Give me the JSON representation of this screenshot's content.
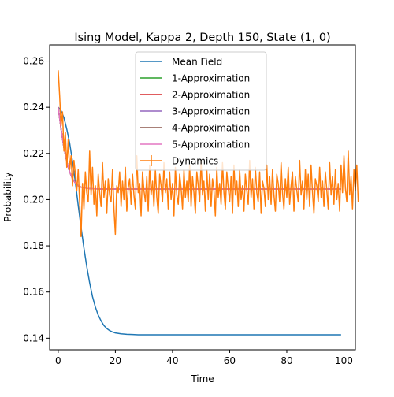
{
  "chart_data": {
    "type": "line",
    "title": "Ising Model, Kappa 2, Depth 150, State (1, 0)",
    "xlabel": "Time",
    "ylabel": "Probability",
    "xlim": [
      -3,
      104
    ],
    "ylim": [
      0.135,
      0.267
    ],
    "xticks": [
      0,
      20,
      40,
      60,
      80,
      100
    ],
    "yticks": [
      0.14,
      0.16,
      0.18,
      0.2,
      0.22,
      0.24,
      0.26
    ],
    "xtick_labels": [
      "0",
      "20",
      "40",
      "60",
      "80",
      "100"
    ],
    "ytick_labels": [
      "0.14",
      "0.16",
      "0.18",
      "0.20",
      "0.22",
      "0.24",
      "0.26"
    ],
    "grid": false,
    "legend_position": "top-center",
    "series": [
      {
        "name": "Mean Field",
        "color": "#1f77b4",
        "x": [
          0,
          1,
          2,
          3,
          4,
          5,
          6,
          7,
          8,
          9,
          10,
          11,
          12,
          13,
          14,
          15,
          16,
          17,
          18,
          19,
          20,
          22,
          24,
          26,
          28,
          30,
          35,
          40,
          50,
          60,
          70,
          80,
          90,
          99
        ],
        "y": [
          0.24,
          0.2385,
          0.2355,
          0.2305,
          0.2245,
          0.2165,
          0.2075,
          0.1975,
          0.188,
          0.179,
          0.171,
          0.164,
          0.158,
          0.1535,
          0.15,
          0.1475,
          0.1455,
          0.1442,
          0.1433,
          0.1427,
          0.1423,
          0.1419,
          0.1417,
          0.1416,
          0.1415,
          0.1415,
          0.1415,
          0.1415,
          0.1415,
          0.1415,
          0.1415,
          0.1415,
          0.1415,
          0.1415
        ]
      },
      {
        "name": "1-Approximation",
        "color": "#2ca02c",
        "x": [
          0,
          1,
          2,
          3,
          4,
          5,
          6,
          7,
          8,
          10,
          12,
          15,
          20,
          30,
          50,
          99
        ],
        "y": [
          0.24,
          0.2305,
          0.2225,
          0.2165,
          0.212,
          0.209,
          0.2072,
          0.206,
          0.2054,
          0.2049,
          0.2047,
          0.2046,
          0.2046,
          0.2046,
          0.2046,
          0.2046
        ]
      },
      {
        "name": "2-Approximation",
        "color": "#d62728",
        "x": [
          0,
          1,
          2,
          3,
          4,
          5,
          6,
          7,
          8,
          10,
          12,
          15,
          20,
          30,
          50,
          99
        ],
        "y": [
          0.24,
          0.2305,
          0.2225,
          0.2165,
          0.212,
          0.209,
          0.2072,
          0.206,
          0.2054,
          0.2049,
          0.2047,
          0.2046,
          0.2046,
          0.2046,
          0.2046,
          0.2046
        ]
      },
      {
        "name": "3-Approximation",
        "color": "#9467bd",
        "x": [
          0,
          1,
          2,
          3,
          4,
          5,
          6,
          7,
          8,
          10,
          12,
          15,
          20,
          30,
          50,
          99
        ],
        "y": [
          0.24,
          0.2305,
          0.2225,
          0.2165,
          0.212,
          0.209,
          0.2072,
          0.206,
          0.2054,
          0.2049,
          0.2047,
          0.2046,
          0.2046,
          0.2046,
          0.2046,
          0.2046
        ]
      },
      {
        "name": "4-Approximation",
        "color": "#8c564b",
        "x": [
          0,
          1,
          2,
          3,
          4,
          5,
          6,
          7,
          8,
          10,
          12,
          15,
          20,
          30,
          50,
          99
        ],
        "y": [
          0.24,
          0.2305,
          0.2225,
          0.2165,
          0.212,
          0.209,
          0.2072,
          0.206,
          0.2054,
          0.2049,
          0.2047,
          0.2046,
          0.2046,
          0.2046,
          0.2046,
          0.2046
        ]
      },
      {
        "name": "5-Approximation",
        "color": "#e377c2",
        "x": [
          0,
          1,
          2,
          3,
          4,
          5,
          6,
          7,
          8,
          10,
          12,
          15,
          20,
          30,
          50,
          99
        ],
        "y": [
          0.24,
          0.2305,
          0.2225,
          0.2165,
          0.212,
          0.209,
          0.2072,
          0.206,
          0.2054,
          0.2049,
          0.2047,
          0.2046,
          0.2046,
          0.2046,
          0.2046,
          0.2046
        ]
      },
      {
        "name": "Dynamics",
        "color": "#ff7f0e",
        "x_start": 0,
        "x_step": 0.5,
        "y": [
          0.256,
          0.245,
          0.232,
          0.238,
          0.221,
          0.229,
          0.214,
          0.226,
          0.213,
          0.219,
          0.206,
          0.217,
          0.211,
          0.204,
          0.213,
          0.199,
          0.184,
          0.207,
          0.196,
          0.212,
          0.203,
          0.199,
          0.221,
          0.202,
          0.214,
          0.198,
          0.206,
          0.193,
          0.211,
          0.203,
          0.197,
          0.216,
          0.201,
          0.208,
          0.194,
          0.209,
          0.202,
          0.199,
          0.213,
          0.196,
          0.185,
          0.206,
          0.203,
          0.212,
          0.197,
          0.208,
          0.2,
          0.214,
          0.195,
          0.205,
          0.209,
          0.198,
          0.211,
          0.202,
          0.196,
          0.219,
          0.203,
          0.207,
          0.193,
          0.212,
          0.204,
          0.199,
          0.21,
          0.195,
          0.215,
          0.202,
          0.208,
          0.197,
          0.213,
          0.201,
          0.194,
          0.211,
          0.206,
          0.199,
          0.216,
          0.203,
          0.209,
          0.196,
          0.212,
          0.2,
          0.207,
          0.193,
          0.214,
          0.202,
          0.198,
          0.211,
          0.205,
          0.196,
          0.213,
          0.201,
          0.208,
          0.199,
          0.215,
          0.197,
          0.21,
          0.203,
          0.194,
          0.212,
          0.206,
          0.199,
          0.217,
          0.202,
          0.208,
          0.195,
          0.213,
          0.2,
          0.211,
          0.197,
          0.209,
          0.204,
          0.193,
          0.214,
          0.201,
          0.207,
          0.198,
          0.216,
          0.203,
          0.196,
          0.212,
          0.205,
          0.199,
          0.21,
          0.194,
          0.215,
          0.202,
          0.208,
          0.197,
          0.213,
          0.2,
          0.206,
          0.195,
          0.211,
          0.204,
          0.198,
          0.217,
          0.201,
          0.209,
          0.196,
          0.214,
          0.203,
          0.199,
          0.212,
          0.194,
          0.208,
          0.205,
          0.197,
          0.215,
          0.2,
          0.21,
          0.198,
          0.213,
          0.202,
          0.195,
          0.211,
          0.207,
          0.199,
          0.216,
          0.203,
          0.196,
          0.209,
          0.201,
          0.214,
          0.198,
          0.206,
          0.212,
          0.195,
          0.21,
          0.204,
          0.199,
          0.217,
          0.202,
          0.208,
          0.196,
          0.213,
          0.2,
          0.211,
          0.197,
          0.215,
          0.203,
          0.194,
          0.209,
          0.206,
          0.199,
          0.214,
          0.201,
          0.208,
          0.197,
          0.212,
          0.204,
          0.196,
          0.216,
          0.202,
          0.21,
          0.198,
          0.213,
          0.2,
          0.207,
          0.195,
          0.215,
          0.203,
          0.219,
          0.205,
          0.199,
          0.221,
          0.202,
          0.21,
          0.196,
          0.213,
          0.204,
          0.215,
          0.199
        ]
      }
    ]
  }
}
